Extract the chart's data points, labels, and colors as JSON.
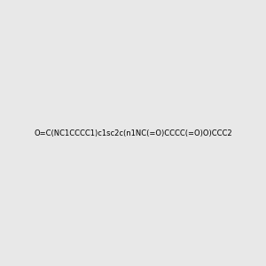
{
  "smiles": "O=C(NC1CCCC1)c1sc2c(n1NC(=O)CCCC(=O)O)CCC2",
  "img_size": [
    300,
    300
  ],
  "background_color": "#e8e8e8",
  "title": "",
  "dpi": 100
}
